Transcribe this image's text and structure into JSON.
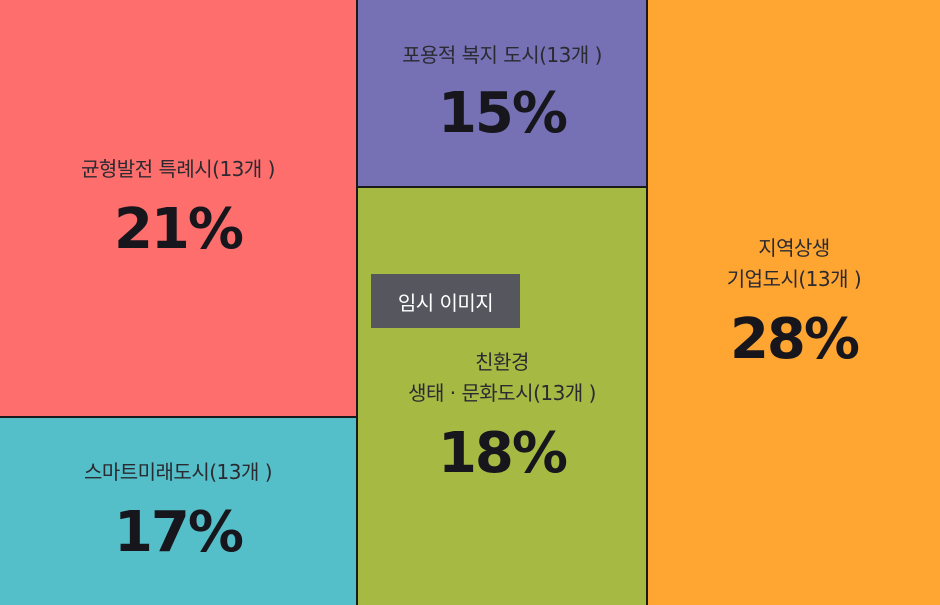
{
  "chart_data": {
    "type": "treemap",
    "title": "",
    "items": [
      {
        "id": "balanced",
        "label": "균형발전 특례시(13개 )",
        "percent": "21%",
        "value": 21,
        "color": "#fd6e6d"
      },
      {
        "id": "smart",
        "label": "스마트미래도시(13개 )",
        "percent": "17%",
        "value": 17,
        "color": "#55bfc9"
      },
      {
        "id": "welfare",
        "label": "포용적 복지 도시(13개 )",
        "percent": "15%",
        "value": 15,
        "color": "#7670b5"
      },
      {
        "id": "eco",
        "label": "친환경\n생태 · 문화도시(13개 )",
        "percent": "18%",
        "value": 18,
        "color": "#a6b943"
      },
      {
        "id": "corp",
        "label": "지역상생\n기업도시(13개 )",
        "percent": "28%",
        "value": 28,
        "color": "#fea532"
      }
    ]
  },
  "overlay": {
    "temp_image_label": "임시 이미지"
  }
}
